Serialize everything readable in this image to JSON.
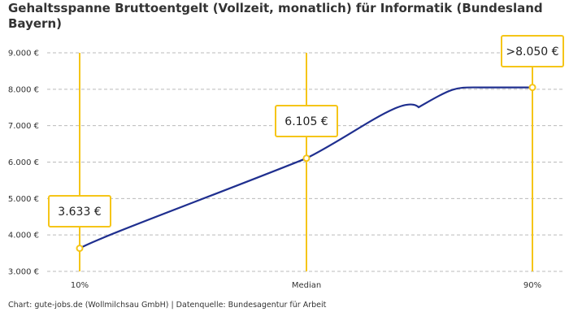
{
  "chart_data": {
    "type": "line",
    "title": "Gehaltsspanne Bruttoentgelt (Vollzeit, monatlich) für Informatik (Bundesland Bayern)",
    "footer": "Chart: gute-jobs.de (Wollmilchsau GmbH) | Datenquelle: Bundesagentur für Arbeit",
    "categories": [
      "10%",
      "Median",
      "90%"
    ],
    "values": [
      3633,
      6105,
      8050
    ],
    "labels": [
      "3.633 €",
      "6.105 €",
      ">8.050 €"
    ],
    "yticks": [
      {
        "value": 3000,
        "label": "3.000 €"
      },
      {
        "value": 4000,
        "label": "4.000 €"
      },
      {
        "value": 5000,
        "label": "5.000 €"
      },
      {
        "value": 6000,
        "label": "6.000 €"
      },
      {
        "value": 7000,
        "label": "7.000 €"
      },
      {
        "value": 8000,
        "label": "8.000 €"
      },
      {
        "value": 9000,
        "label": "9.000 €"
      }
    ],
    "ylim": [
      3000,
      9000
    ],
    "grid": true,
    "colors": {
      "line": "#1f2f8f",
      "marker": "#f5c518",
      "grid": "#bbbbbb",
      "text": "#333333"
    }
  }
}
